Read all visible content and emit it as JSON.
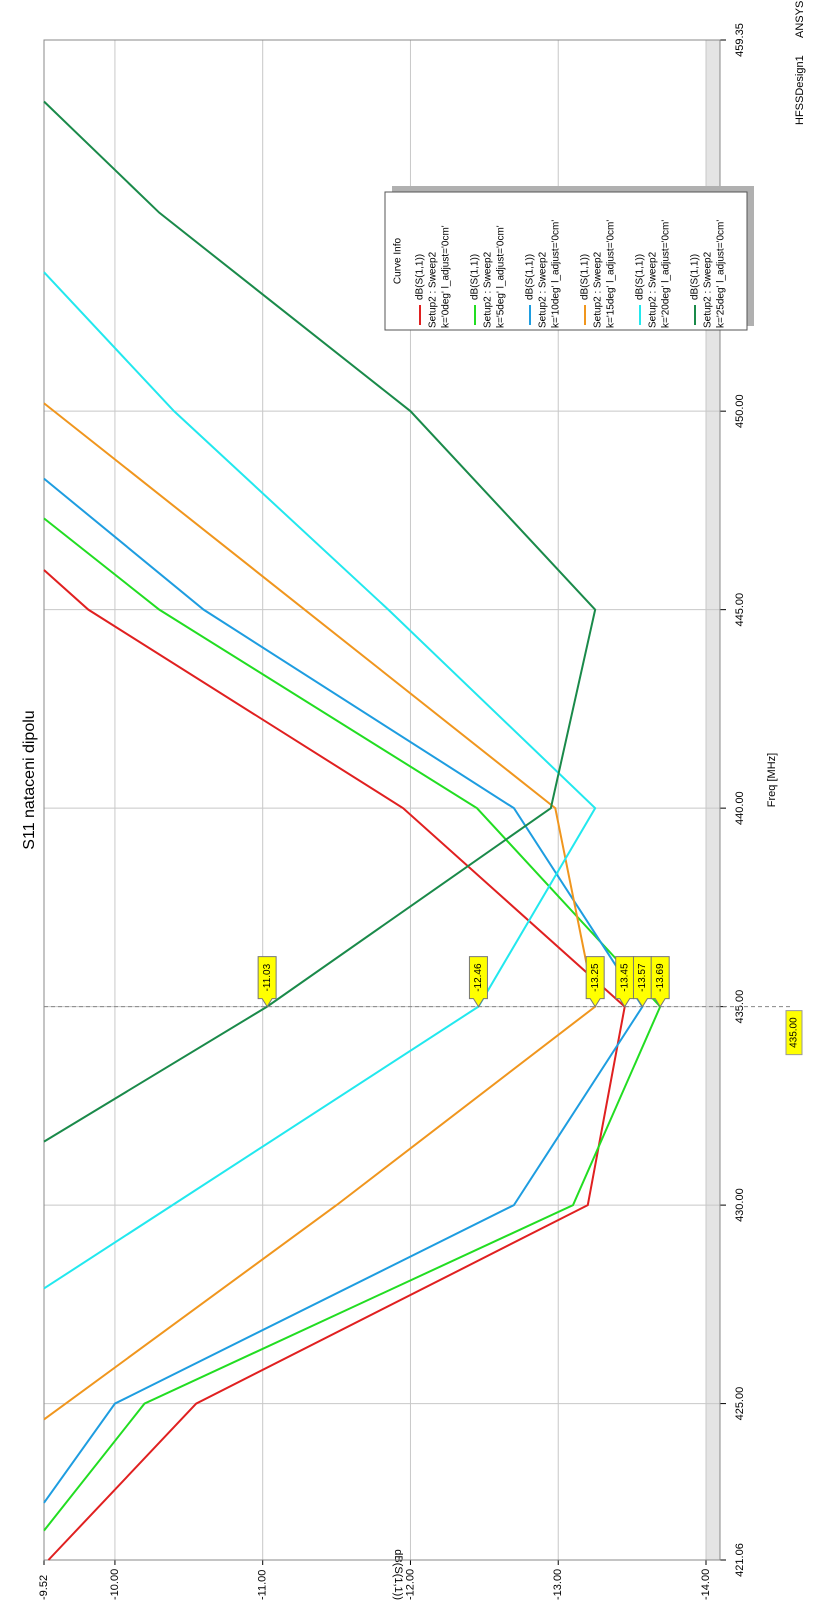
{
  "chart_data": {
    "type": "line",
    "title": "S11 nataceni dipolu",
    "design": "HFSSDesign1",
    "brand": "ANSYS",
    "x_label": "Freq [MHz]",
    "y_label": "dB(S(1,1))",
    "xlim": [
      421.06,
      459.35
    ],
    "xticks": [
      {
        "value": 421.06,
        "label": "421.06"
      },
      {
        "value": 425,
        "label": "425.00"
      },
      {
        "value": 430,
        "label": "430.00"
      },
      {
        "value": 435,
        "label": "435.00"
      },
      {
        "value": 440,
        "label": "440.00"
      },
      {
        "value": 445,
        "label": "445.00"
      },
      {
        "value": 450,
        "label": "450.00"
      },
      {
        "value": 459.35,
        "label": "459.35"
      }
    ],
    "ylim": [
      -9.52,
      -14.0
    ],
    "yticks": [
      -9.52,
      {
        "value": -10,
        "label": "-10.00"
      },
      {
        "value": -11,
        "label": "-11.00"
      },
      {
        "value": -12,
        "label": "-12.00"
      },
      {
        "value": -13,
        "label": "-13.00"
      },
      {
        "value": -14,
        "label": "-14.00"
      }
    ],
    "grid": true,
    "legend_title": "Curve Info",
    "series": [
      {
        "name": [
          "dB(S(1,1))",
          "Setup2 : Sweep2",
          "k='0deg' l_adjust='0cm'"
        ],
        "color": "#e02020",
        "x": [
          421.06,
          425,
          430,
          435,
          440,
          445,
          446
        ],
        "values": [
          -9.55,
          -10.55,
          -13.2,
          -13.45,
          -11.95,
          -9.82,
          -9.52
        ]
      },
      {
        "name": [
          "dB(S(1,1))",
          "Setup2 : Sweep2",
          "k='5deg' l_adjust='0cm'"
        ],
        "color": "#22dd22",
        "x": [
          421.8,
          425,
          430,
          435,
          440,
          445,
          447.3
        ],
        "values": [
          -9.52,
          -10.2,
          -13.1,
          -13.69,
          -12.45,
          -10.3,
          -9.52
        ]
      },
      {
        "name": [
          "dB(S(1,1))",
          "Setup2 : Sweep2",
          "k='10deg' l_adjust='0cm'"
        ],
        "color": "#1e9de0",
        "x": [
          422.5,
          425,
          430,
          435,
          440,
          445,
          448.3
        ],
        "values": [
          -9.52,
          -10.0,
          -12.7,
          -13.57,
          -12.7,
          -10.6,
          -9.52
        ]
      },
      {
        "name": [
          "dB(S(1,1))",
          "Setup2 : Sweep2",
          "k='15deg' l_adjust='0cm'"
        ],
        "color": "#f0961e",
        "x": [
          424.6,
          430,
          435,
          440,
          450.2
        ],
        "values": [
          -9.52,
          -11.5,
          -13.25,
          -12.98,
          -9.52
        ]
      },
      {
        "name": [
          "dB(S(1,1))",
          "Setup2 : Sweep2",
          "k='20deg' l_adjust='0cm'"
        ],
        "color": "#22e8ee",
        "x": [
          427.9,
          435,
          440,
          445,
          450,
          453.5
        ],
        "values": [
          -9.52,
          -12.46,
          -13.25,
          -11.85,
          -10.4,
          -9.52
        ]
      },
      {
        "name": [
          "dB(S(1,1))",
          "Setup2 : Sweep2",
          "k='25deg' l_adjust='0cm'"
        ],
        "color": "#1a8a4a",
        "x": [
          431.6,
          435,
          440,
          445,
          450,
          455,
          457.8
        ],
        "values": [
          -9.52,
          -11.03,
          -12.95,
          -13.25,
          -12.0,
          -10.3,
          -9.52
        ]
      }
    ],
    "marker_x": {
      "value": 435,
      "label": "435.00"
    },
    "markers": [
      -11.03,
      -12.46,
      -13.25,
      -13.45,
      -13.57,
      -13.69
    ]
  }
}
